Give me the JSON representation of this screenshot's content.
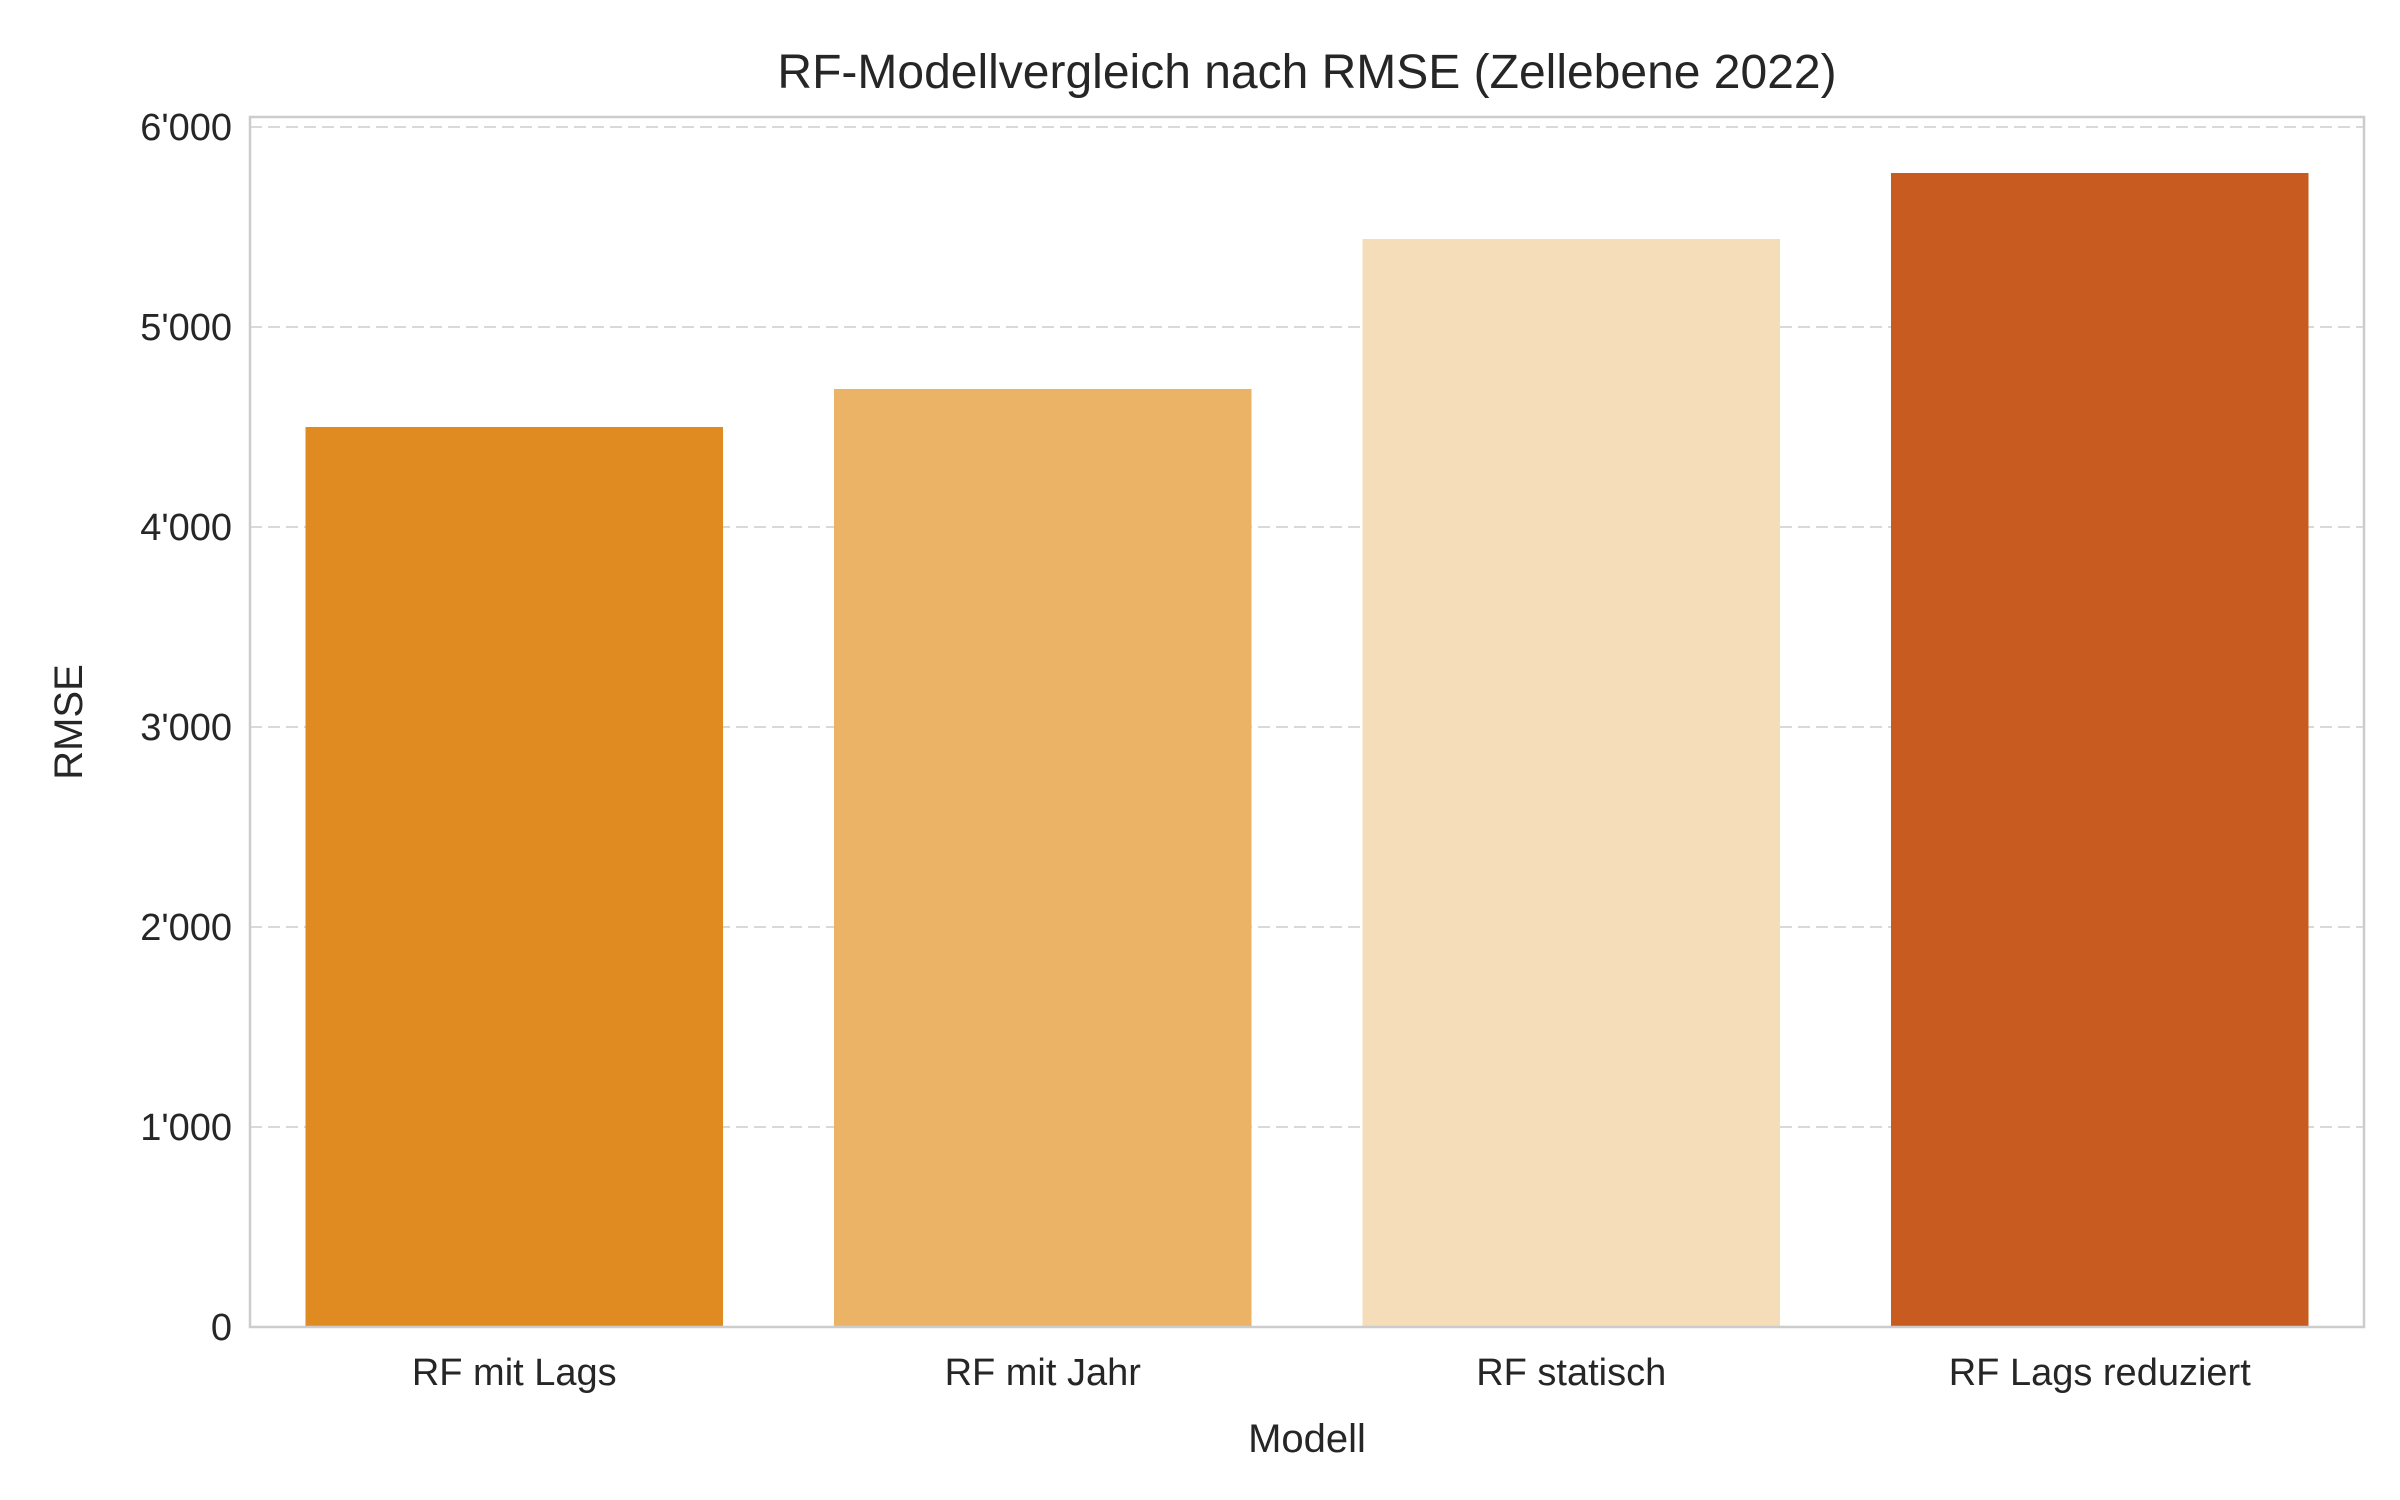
{
  "chart_data": {
    "type": "bar",
    "title": "RF-Modellvergleich nach RMSE (Zellebene 2022)",
    "xlabel": "Modell",
    "ylabel": "RMSE",
    "categories": [
      "RF mit Lags",
      "RF mit Jahr",
      "RF statisch",
      "RF Lags reduziert"
    ],
    "values": [
      4500,
      4690,
      5440,
      5770
    ],
    "colors": [
      "#e08a22",
      "#eab365",
      "#f5ddb9",
      "#c85b1f"
    ],
    "ylim": [
      0,
      6050
    ],
    "yticks": [
      0,
      1000,
      2000,
      3000,
      4000,
      5000,
      6000
    ],
    "ytick_labels": [
      "0",
      "1'000",
      "2'000",
      "3'000",
      "4'000",
      "5'000",
      "6'000"
    ],
    "grid": "y-dashed",
    "legend": "none"
  }
}
